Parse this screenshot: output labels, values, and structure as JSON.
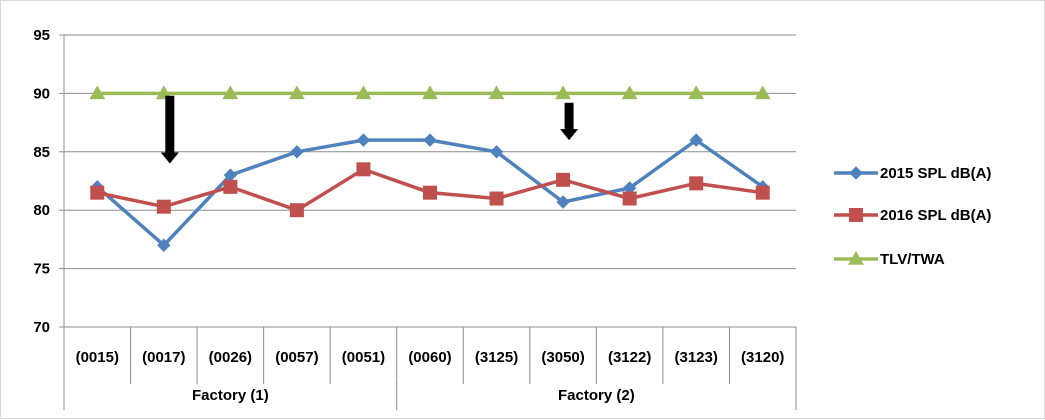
{
  "chart_data": {
    "type": "line",
    "ylim": [
      70,
      95
    ],
    "yticks": [
      70,
      75,
      80,
      85,
      90,
      95
    ],
    "categories": [
      "(0015)",
      "(0017)",
      "(0026)",
      "(0057)",
      "(0051)",
      "(0060)",
      "(3125)",
      "(3050)",
      "(3122)",
      "(3123)",
      "(3120)"
    ],
    "groups": [
      {
        "label": "Factory (1)",
        "count": 5
      },
      {
        "label": "Factory (2)",
        "count": 6
      }
    ],
    "series": [
      {
        "name": "2015 SPL dB(A)",
        "color": "#4f81bd",
        "marker": "diamond",
        "values": [
          82,
          77,
          83,
          85,
          86,
          86,
          85,
          80.7,
          81.9,
          86,
          82
        ]
      },
      {
        "name": "2016 SPL dB(A)",
        "color": "#c0504d",
        "marker": "square",
        "values": [
          81.5,
          80.3,
          82,
          80,
          83.5,
          81.5,
          81,
          82.6,
          81,
          82.3,
          81.5
        ]
      },
      {
        "name": "TLV/TWA",
        "color": "#9bbb59",
        "marker": "triangle",
        "values": [
          90,
          90,
          90,
          90,
          90,
          90,
          90,
          90,
          90,
          90,
          90
        ]
      }
    ],
    "annotations": [
      {
        "type": "down-arrow",
        "category": "(0017)",
        "from": 89.8,
        "to": 84
      },
      {
        "type": "down-arrow",
        "category": "(3050)",
        "from": 89.2,
        "to": 86
      }
    ],
    "grid": true,
    "legend_position": "right"
  }
}
